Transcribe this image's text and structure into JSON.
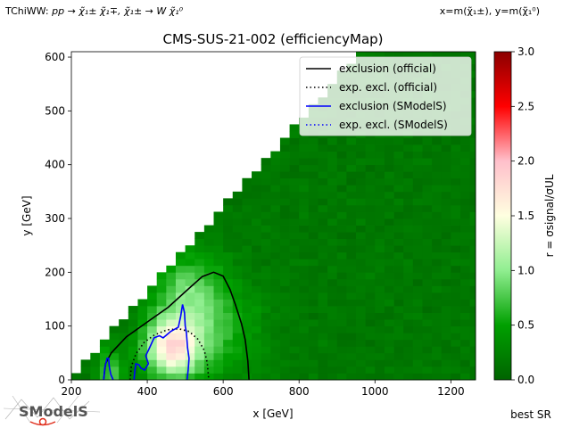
{
  "header": {
    "process_prefix": "TChiWW: ",
    "process": "pp → χ̃₁± χ̃₁∓, χ̃₁± → W χ̃₁⁰",
    "axes_def": "x=m(χ̃₁±), y=m(χ̃₁⁰)"
  },
  "logo": {
    "text": "SModelS"
  },
  "chart_data": {
    "type": "heatmap",
    "title": "CMS-SUS-21-002 (efficiencyMap)",
    "xlabel": "x [GeV]",
    "ylabel": "y [GeV]",
    "xlim": [
      200,
      1265
    ],
    "ylim": [
      0,
      610
    ],
    "xticks": [
      200,
      400,
      600,
      800,
      1000,
      1200
    ],
    "yticks": [
      0,
      100,
      200,
      300,
      400,
      500,
      600
    ],
    "colorbar": {
      "label": "r = σsignal/σUL",
      "range": [
        0.0,
        3.0
      ],
      "ticks": [
        "0.0",
        "0.5",
        "1.0",
        "1.5",
        "2.0",
        "2.5",
        "3.0"
      ],
      "colors": [
        "#006400",
        "#00a000",
        "#90ee90",
        "#ffffe0",
        "#ffc0cb",
        "#ff0000",
        "#8b0000"
      ]
    },
    "grid_cell": [
      25,
      12.5
    ],
    "grid_x_range": [
      200,
      1275
    ],
    "diagonal_boundary": {
      "y_at_x200": 0,
      "slope": 0.79
    },
    "legend": {
      "placement": "top-right",
      "entries": [
        {
          "label": "exclusion (official)",
          "color": "#000000",
          "style": "solid"
        },
        {
          "label": "exp. excl. (official)",
          "color": "#000000",
          "style": "dotted"
        },
        {
          "label": "exclusion (SModelS)",
          "color": "#0000ff",
          "style": "solid"
        },
        {
          "label": "exp. excl. (SModelS)",
          "color": "#0000ff",
          "style": "dotted"
        }
      ]
    },
    "r_hotspots": [
      {
        "x": 465,
        "y": 60,
        "sx": 70,
        "sy": 55,
        "amp": 1.4
      },
      {
        "x": 510,
        "y": 170,
        "sx": 90,
        "sy": 70,
        "amp": 0.55
      },
      {
        "x": 560,
        "y": 90,
        "sx": 140,
        "sy": 90,
        "amp": 0.5
      },
      {
        "x": 300,
        "y": 20,
        "sx": 35,
        "sy": 40,
        "amp": 0.6
      }
    ],
    "r_background": 0.12,
    "contours": {
      "exclusion_official": [
        [
          285,
          0
        ],
        [
          290,
          30
        ],
        [
          305,
          50
        ],
        [
          345,
          80
        ],
        [
          405,
          110
        ],
        [
          455,
          135
        ],
        [
          510,
          170
        ],
        [
          545,
          192
        ],
        [
          575,
          200
        ],
        [
          600,
          193
        ],
        [
          618,
          168
        ],
        [
          632,
          140
        ],
        [
          648,
          105
        ],
        [
          658,
          75
        ],
        [
          665,
          35
        ],
        [
          668,
          0
        ]
      ],
      "exp_excl_official": [
        [
          355,
          0
        ],
        [
          358,
          25
        ],
        [
          370,
          48
        ],
        [
          392,
          70
        ],
        [
          418,
          83
        ],
        [
          452,
          93
        ],
        [
          483,
          95
        ],
        [
          510,
          90
        ],
        [
          533,
          76
        ],
        [
          550,
          55
        ],
        [
          558,
          32
        ],
        [
          562,
          0
        ]
      ],
      "exclusion_smodels": [
        [
          [
            285,
            0
          ],
          [
            288,
            22
          ],
          [
            294,
            40
          ],
          [
            298,
            40
          ],
          [
            300,
            25
          ],
          [
            304,
            10
          ],
          [
            310,
            0
          ]
        ],
        [
          [
            365,
            0
          ],
          [
            367,
            15
          ],
          [
            370,
            30
          ],
          [
            378,
            28
          ],
          [
            383,
            22
          ],
          [
            393,
            18
          ],
          [
            403,
            30
          ],
          [
            396,
            45
          ],
          [
            405,
            58
          ],
          [
            418,
            78
          ],
          [
            432,
            82
          ],
          [
            442,
            78
          ],
          [
            462,
            90
          ],
          [
            482,
            98
          ],
          [
            488,
            118
          ],
          [
            493,
            140
          ],
          [
            498,
            125
          ],
          [
            500,
            100
          ],
          [
            503,
            88
          ],
          [
            506,
            60
          ],
          [
            510,
            40
          ],
          [
            508,
            20
          ],
          [
            505,
            0
          ]
        ]
      ],
      "exp_excl_smodels": []
    },
    "footer_label": "best SR"
  }
}
